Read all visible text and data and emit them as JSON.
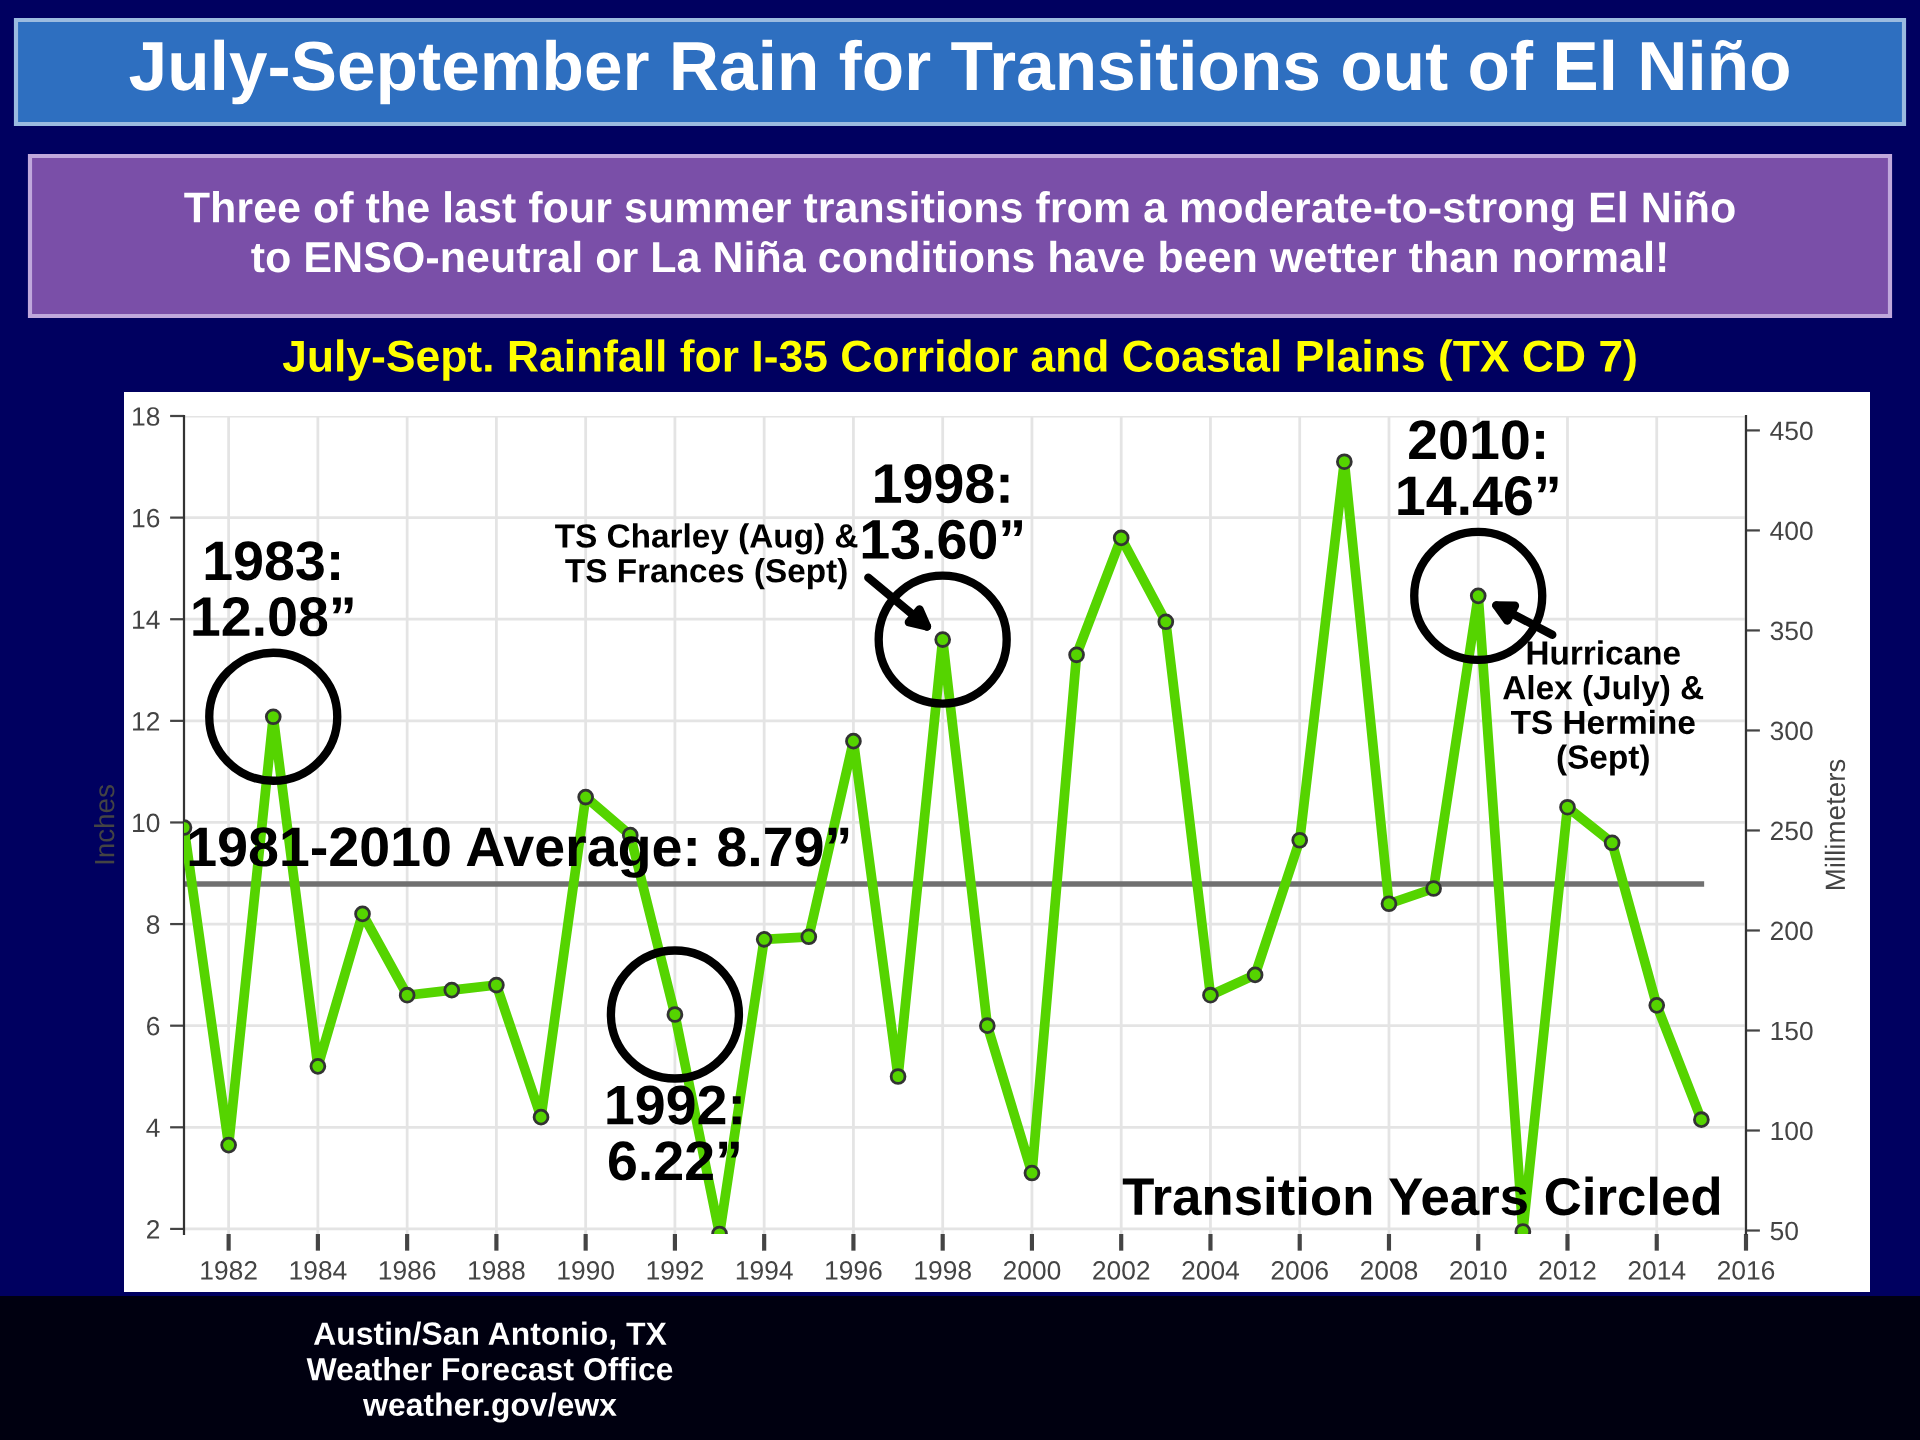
{
  "chart_data": {
    "type": "line",
    "title": "July-September Rain for Transitions out of El Niño",
    "subtitle": "Three of the last four summer transitions from a moderate-to-strong El Niño\nto ENSO-neutral or La Niña conditions have been wetter than normal!",
    "ylabel": "Inches",
    "y2label": "Millimeters",
    "x": [
      1981,
      1982,
      1983,
      1984,
      1985,
      1986,
      1987,
      1988,
      1989,
      1990,
      1991,
      1992,
      1993,
      1994,
      1995,
      1996,
      1997,
      1998,
      1999,
      2000,
      2001,
      2002,
      2003,
      2004,
      2005,
      2006,
      2007,
      2008,
      2009,
      2010,
      2011,
      2012,
      2013,
      2014,
      2015
    ],
    "series": [
      {
        "color": "#55d400",
        "values": [
          9.9,
          3.65,
          12.08,
          5.2,
          8.2,
          6.6,
          6.7,
          6.8,
          4.2,
          10.5,
          9.75,
          6.22,
          1.9,
          7.7,
          7.75,
          11.6,
          5.0,
          13.6,
          6.0,
          3.1,
          13.3,
          15.6,
          13.95,
          6.6,
          7.0,
          9.65,
          17.1,
          8.4,
          8.7,
          14.46,
          1.95,
          10.3,
          9.6,
          6.4,
          4.15
        ]
      }
    ],
    "xlim": [
      1981,
      2016
    ],
    "xticks": [
      1982,
      1984,
      1986,
      1988,
      1990,
      1992,
      1994,
      1996,
      1998,
      2000,
      2002,
      2004,
      2006,
      2008,
      2010,
      2012,
      2014,
      2016
    ],
    "ylim": [
      1.9,
      18
    ],
    "yticks": [
      2,
      4,
      6,
      8,
      10,
      12,
      14,
      16,
      18
    ],
    "y2lim": [
      48.26,
      457.2
    ],
    "y2ticks": [
      50,
      100,
      150,
      200,
      250,
      300,
      350,
      400,
      450
    ],
    "grid": true,
    "marker": "circle",
    "line_style": "solid",
    "ref_lines": [
      {
        "axis": "y",
        "value": 8.79,
        "label": "1981-2010 Average: 8.79”",
        "color": "#707070"
      }
    ],
    "annotations": [
      {
        "text": "1983:\n12.08”",
        "x": 1983,
        "y": 12.08
      },
      {
        "text": "1992:\n6.22”",
        "x": 1992,
        "y": 6.22
      },
      {
        "text": "1998:\n13.60”",
        "x": 1998,
        "y": 13.6
      },
      {
        "text": "2010:\n14.46”",
        "x": 2010,
        "y": 14.46
      },
      {
        "text": "TS Charley (Aug) &\nTS Frances (Sept)",
        "x": 1998,
        "y": 13.6
      },
      {
        "text": "Hurricane\nAlex (July) &\nTS Hermine\n(Sept)",
        "x": 2010,
        "y": 14.46
      },
      "July-Sept. Rainfall for I-35 Corridor and Coastal Plains (TX CD 7)",
      "Transition Years Circled",
      "Austin/San Antonio, TX\nWeather Forecast Office\nweather.gov/ewx"
    ]
  }
}
